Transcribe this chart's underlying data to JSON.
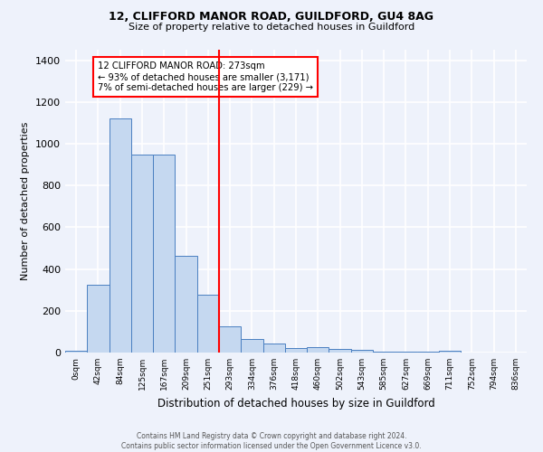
{
  "title1": "12, CLIFFORD MANOR ROAD, GUILDFORD, GU4 8AG",
  "title2": "Size of property relative to detached houses in Guildford",
  "xlabel": "Distribution of detached houses by size in Guildford",
  "ylabel": "Number of detached properties",
  "bin_labels": [
    "0sqm",
    "42sqm",
    "84sqm",
    "125sqm",
    "167sqm",
    "209sqm",
    "251sqm",
    "293sqm",
    "334sqm",
    "376sqm",
    "418sqm",
    "460sqm",
    "502sqm",
    "543sqm",
    "585sqm",
    "627sqm",
    "669sqm",
    "711sqm",
    "752sqm",
    "794sqm",
    "836sqm"
  ],
  "bar_heights": [
    8,
    325,
    1120,
    950,
    950,
    465,
    275,
    125,
    65,
    42,
    22,
    25,
    18,
    14,
    5,
    5,
    5,
    10,
    2,
    2,
    2
  ],
  "bar_color": "#c5d8f0",
  "bar_edge_color": "#4a7fc1",
  "red_line_x": 7.0,
  "annotation_text_line1": "12 CLIFFORD MANOR ROAD: 273sqm",
  "annotation_text_line2": "← 93% of detached houses are smaller (3,171)",
  "annotation_text_line3": "7% of semi-detached houses are larger (229) →",
  "footer_line1": "Contains HM Land Registry data © Crown copyright and database right 2024.",
  "footer_line2": "Contains public sector information licensed under the Open Government Licence v3.0.",
  "ylim": [
    0,
    1450
  ],
  "yticks": [
    0,
    200,
    400,
    600,
    800,
    1000,
    1200,
    1400
  ],
  "background_color": "#eef2fb",
  "grid_color": "#ffffff"
}
